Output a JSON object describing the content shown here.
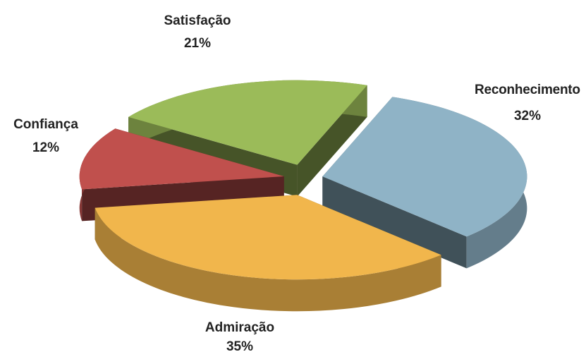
{
  "chart_data": {
    "type": "pie",
    "categories": [
      "Reconhecimento",
      "Admiração",
      "Confiança",
      "Satisfação"
    ],
    "values": [
      32,
      35,
      12,
      21
    ],
    "value_labels": [
      "32%",
      "35%",
      "12%",
      "21%"
    ],
    "colors": [
      "#8fb3c6",
      "#f1b64c",
      "#c0504d",
      "#9bbb59"
    ]
  }
}
